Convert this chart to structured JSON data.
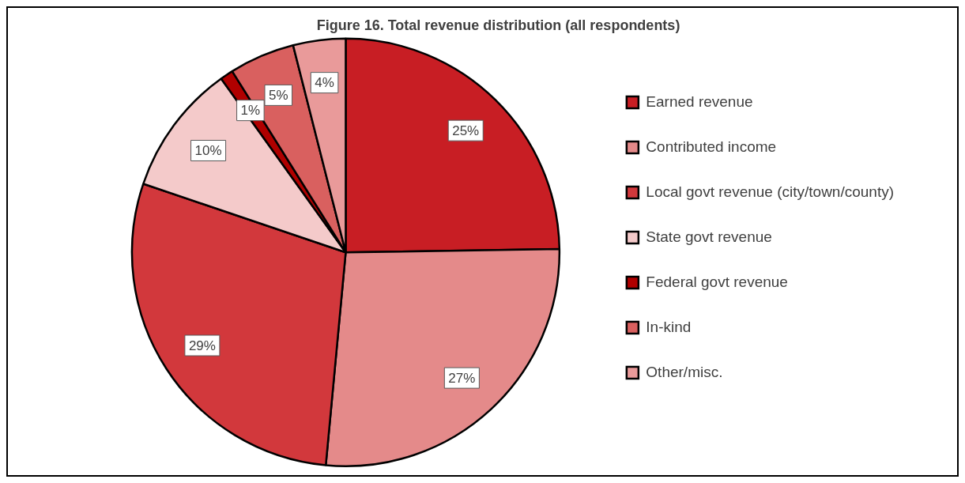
{
  "chart_data": {
    "type": "pie",
    "title": "Figure 16. Total revenue distribution (all respondents)",
    "categories": [
      "Earned revenue",
      "Contributed income",
      "Local govt revenue (city/town/county)",
      "State govt revenue",
      "Federal govt revenue",
      "In-kind",
      "Other/misc."
    ],
    "values": [
      25,
      27,
      29,
      10,
      1,
      5,
      4
    ],
    "colors": [
      "#c81e24",
      "#e48a8a",
      "#d2383c",
      "#f4caca",
      "#b00000",
      "#d9605f",
      "#e99a9a"
    ],
    "value_labels": [
      "25%",
      "27%",
      "29%",
      "10%",
      "1%",
      "5%",
      "4%"
    ],
    "legend": "right"
  }
}
